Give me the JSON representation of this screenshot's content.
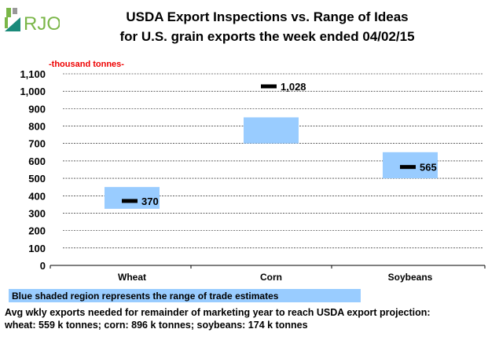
{
  "logo": {
    "text": "RJO",
    "colors": [
      "#7ab648",
      "#1a8a7a",
      "#888888"
    ]
  },
  "chart_data": {
    "type": "range-bar-with-marker",
    "title": "USDA Export Inspections vs. Range of Ideas",
    "subtitle": "for U.S. grain exports the week ended 04/02/15",
    "ylabel": "-thousand tonnes-",
    "ylim": [
      0,
      1100
    ],
    "yticks": [
      0,
      100,
      200,
      300,
      400,
      500,
      600,
      700,
      800,
      900,
      1000,
      1100
    ],
    "ytick_labels": [
      "0",
      "100",
      "200",
      "300",
      "400",
      "500",
      "600",
      "700",
      "800",
      "900",
      "1,000",
      "1,100"
    ],
    "grid": true,
    "categories": [
      "Wheat",
      "Corn",
      "Soybeans"
    ],
    "ranges": [
      [
        325,
        450
      ],
      [
        700,
        850
      ],
      [
        500,
        650
      ]
    ],
    "actual": [
      370,
      1028,
      565
    ],
    "actual_labels": [
      "370",
      "1,028",
      "565"
    ],
    "range_color": "#99ccff",
    "marker_color": "#000000"
  },
  "legend": "Blue shaded region represents the range of trade estimates",
  "notes": [
    "Avg wkly exports needed for remainder of marketing year to reach USDA export projection:",
    "wheat: 559 k tonnes; corn: 896 k tonnes; soybeans: 174 k tonnes"
  ]
}
